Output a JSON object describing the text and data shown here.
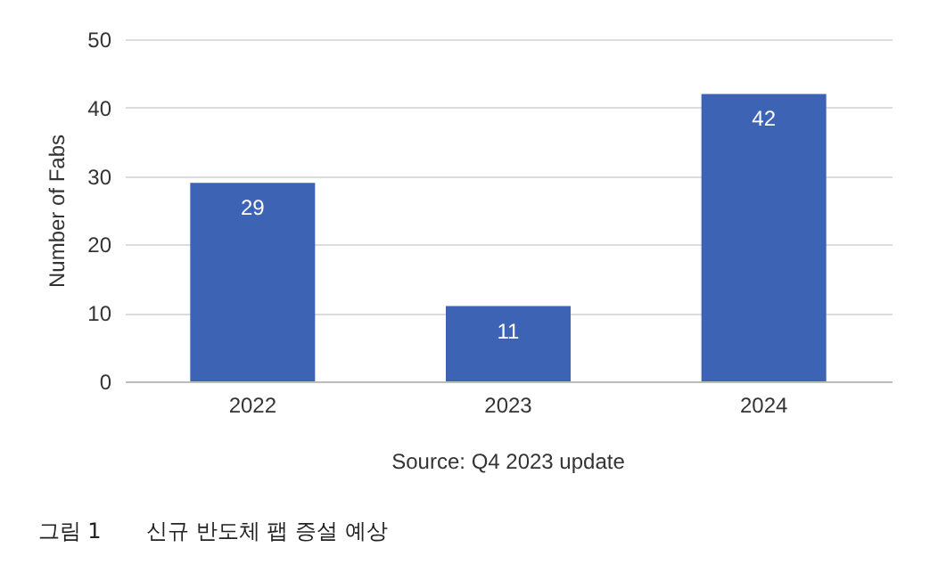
{
  "chart_data": {
    "type": "bar",
    "categories": [
      "2022",
      "2023",
      "2024"
    ],
    "values": [
      29,
      11,
      42
    ],
    "color": "#3d63b5",
    "ylabel": "Number of Fabs",
    "ylim": [
      0,
      50
    ],
    "yticks": [
      0,
      10,
      20,
      30,
      40,
      50
    ],
    "grid": "y",
    "data_labels": true,
    "annotations": [
      "Source: Q4 2023 update",
      "그림 1",
      "신규 반도체 팹 증설 예상"
    ]
  }
}
